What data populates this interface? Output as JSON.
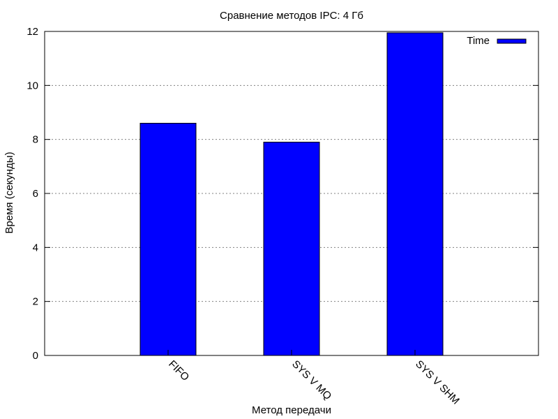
{
  "chart_data": {
    "type": "bar",
    "title": "Сравнение методов IPC: 4 Гб",
    "xlabel": "Метод передачи",
    "ylabel": "Время (секунды)",
    "categories": [
      "FIFO",
      "SYS V MQ",
      "SYS V SHM"
    ],
    "series": [
      {
        "name": "Time",
        "values": [
          8.6,
          7.9,
          11.95
        ],
        "color": "#0000ff"
      }
    ],
    "ylim": [
      0,
      12
    ],
    "yticks": [
      "0",
      "2",
      "4",
      "6",
      "8",
      "10",
      "12"
    ],
    "grid": "horizontal dotted",
    "legend_position": "top-right"
  }
}
